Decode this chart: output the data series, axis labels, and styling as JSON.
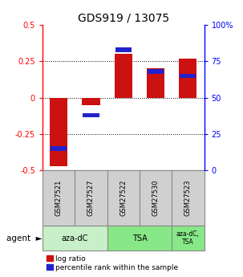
{
  "title": "GDS919 / 13075",
  "samples": [
    "GSM27521",
    "GSM27527",
    "GSM27522",
    "GSM27530",
    "GSM27523"
  ],
  "log_ratios": [
    -0.47,
    -0.05,
    0.3,
    0.2,
    0.27
  ],
  "percentile_ranks": [
    15,
    38,
    83,
    68,
    65
  ],
  "group_aza_dc_color": "#c8f0c8",
  "group_tsa_color": "#88e888",
  "group_combo_color": "#88e888",
  "bar_color_red": "#cc1111",
  "bar_color_blue": "#2222cc",
  "sample_box_color": "#d0d0d0",
  "ylim_left": [
    -0.5,
    0.5
  ],
  "ylim_right": [
    0,
    100
  ],
  "yticks_left": [
    -0.5,
    -0.25,
    0.0,
    0.25,
    0.5
  ],
  "ytick_labels_left": [
    "-0.5",
    "-0.25",
    "0",
    "0.25",
    "0.5"
  ],
  "yticks_right": [
    0,
    25,
    50,
    75,
    100
  ],
  "ytick_labels_right": [
    "0",
    "25",
    "50",
    "75",
    "100%"
  ],
  "grid_values": [
    -0.25,
    0.0,
    0.25
  ],
  "bar_width": 0.55,
  "blue_bar_width": 0.5,
  "blue_bar_height": 0.03,
  "legend_red": "log ratio",
  "legend_blue": "percentile rank within the sample",
  "title_fontsize": 10,
  "tick_fontsize": 7,
  "sample_fontsize": 6,
  "agent_fontsize": 7,
  "legend_fontsize": 6.5
}
